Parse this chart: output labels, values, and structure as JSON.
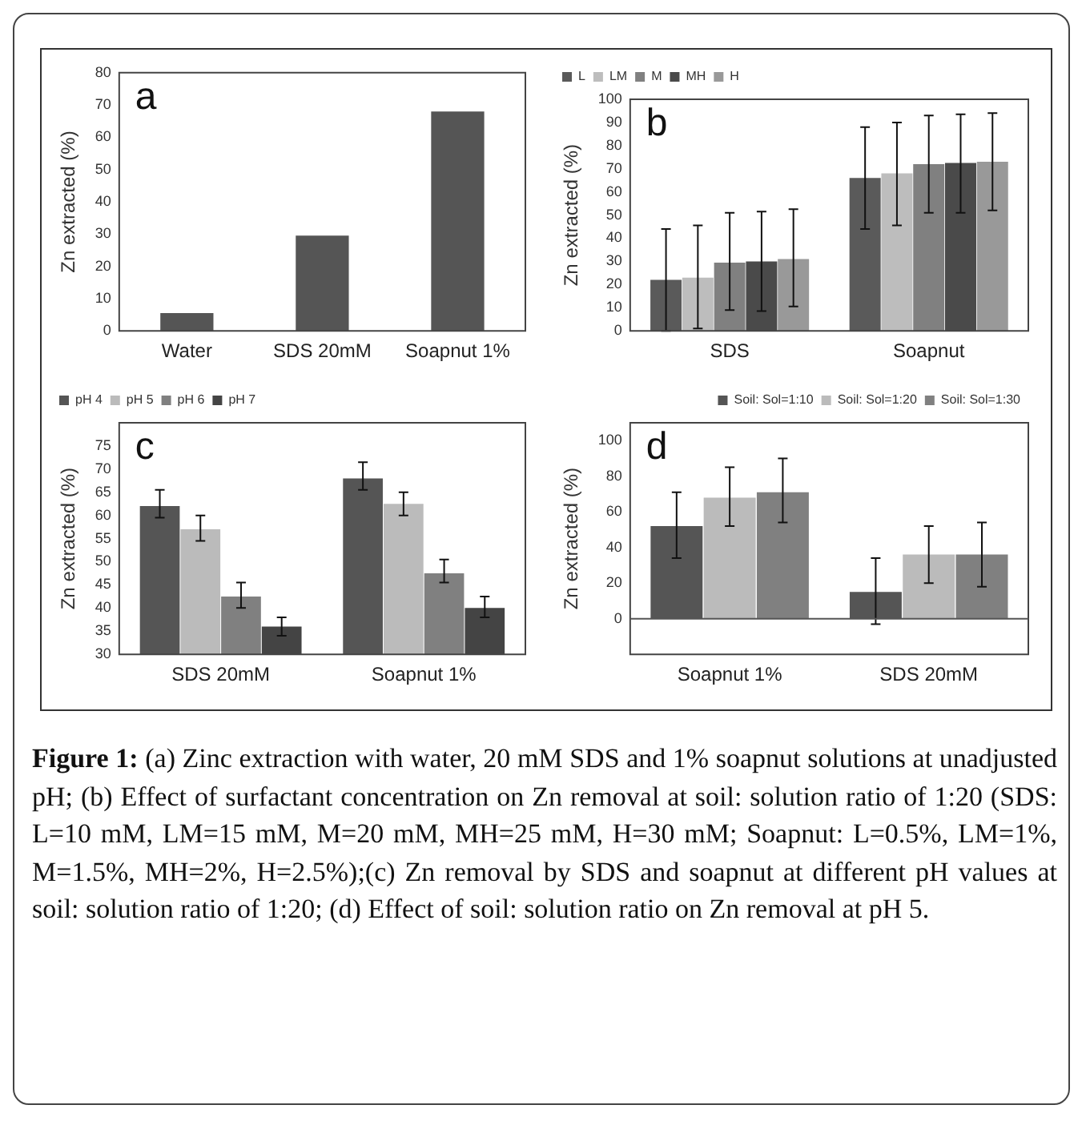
{
  "chart_data": [
    {
      "type": "bar",
      "title": "a",
      "ylabel": "Zn extracted (%)",
      "categories": [
        "Water",
        "SDS 20mM",
        "Soapnut 1%"
      ],
      "values": [
        5.5,
        29.5,
        68
      ],
      "color": "#555555",
      "ylim": [
        0,
        80
      ],
      "yticks": [
        0,
        10,
        20,
        30,
        40,
        50,
        60,
        70,
        80
      ],
      "grid": false,
      "legend": false
    },
    {
      "type": "bar",
      "title": "b",
      "ylabel": "Zn extracted (%)",
      "categories": [
        "SDS",
        "Soapnut"
      ],
      "ylim": [
        0,
        100
      ],
      "yticks": [
        0,
        10,
        20,
        30,
        40,
        50,
        60,
        70,
        80,
        90,
        100
      ],
      "grid": false,
      "legend": "top left",
      "series": [
        {
          "name": "L",
          "color": "#5a5a5a",
          "values": [
            22,
            66
          ],
          "errors": [
            [
              0,
              44
            ],
            [
              44,
              88
            ]
          ]
        },
        {
          "name": "LM",
          "color": "#bdbdbd",
          "values": [
            23,
            68
          ],
          "errors": [
            [
              1,
              45.5
            ],
            [
              45.5,
              90
            ]
          ]
        },
        {
          "name": "M",
          "color": "#808080",
          "values": [
            29.5,
            72
          ],
          "errors": [
            [
              9,
              51
            ],
            [
              51,
              93
            ]
          ]
        },
        {
          "name": "MH",
          "color": "#4a4a4a",
          "values": [
            30,
            72.5
          ],
          "errors": [
            [
              8.5,
              51.5
            ],
            [
              51,
              93.5
            ]
          ]
        },
        {
          "name": "H",
          "color": "#999999",
          "values": [
            31,
            73
          ],
          "errors": [
            [
              10.5,
              52.5
            ],
            [
              52,
              94
            ]
          ]
        }
      ]
    },
    {
      "type": "bar",
      "title": "c",
      "ylabel": "Zn extracted (%)",
      "categories": [
        "SDS 20mM",
        "Soapnut 1%"
      ],
      "ylim": [
        30,
        80
      ],
      "yticks": [
        30,
        35,
        40,
        45,
        50,
        55,
        60,
        65,
        70,
        75
      ],
      "grid": false,
      "legend": "top left",
      "series": [
        {
          "name": "pH 4",
          "color": "#555555",
          "values": [
            62,
            68
          ],
          "errors": [
            [
              59.5,
              65.5
            ],
            [
              65.5,
              71.5
            ]
          ]
        },
        {
          "name": "pH 5",
          "color": "#bbbbbb",
          "values": [
            57,
            62.5
          ],
          "errors": [
            [
              54.5,
              60
            ],
            [
              60,
              65
            ]
          ]
        },
        {
          "name": "pH 6",
          "color": "#808080",
          "values": [
            42.5,
            47.5
          ],
          "errors": [
            [
              40,
              45.5
            ],
            [
              45.5,
              50.5
            ]
          ]
        },
        {
          "name": "pH 7",
          "color": "#444444",
          "values": [
            36,
            40
          ],
          "errors": [
            [
              34,
              38
            ],
            [
              38,
              42.5
            ]
          ]
        }
      ]
    },
    {
      "type": "bar",
      "title": "d",
      "ylabel": "Zn extracted (%)",
      "categories": [
        "Soapnut 1%",
        "SDS 20mM"
      ],
      "ylim": [
        -20,
        110
      ],
      "yticks": [
        0,
        20,
        40,
        60,
        80,
        100
      ],
      "grid": false,
      "ref_lines": [
        {
          "axis": "y",
          "value": 0,
          "color": "#555555"
        }
      ],
      "legend": "top right",
      "series": [
        {
          "name": "Soil: Sol=1:10",
          "color": "#555555",
          "values": [
            52,
            15
          ],
          "errors": [
            [
              34,
              71
            ],
            [
              -3,
              34
            ]
          ]
        },
        {
          "name": "Soil: Sol=1:20",
          "color": "#bbbbbb",
          "values": [
            68,
            36
          ],
          "errors": [
            [
              52,
              85
            ],
            [
              20,
              52
            ]
          ]
        },
        {
          "name": "Soil: Sol=1:30",
          "color": "#808080",
          "values": [
            71,
            36
          ],
          "errors": [
            [
              54,
              90
            ],
            [
              18,
              54
            ]
          ]
        }
      ],
      "annotations": [
        "Figure 1:",
        "(a) Zinc extraction with water, 20 mM SDS and 1% soapnut solutions at unadjusted pH; (b) Effect of surfactant concentration on Zn removal at soil: solution ratio of 1:20 (SDS: L=10 mM, LM=15 mM, M=20 mM, MH=25 mM, H=30 mM; Soapnut: L=0.5%, LM=1%, M=1.5%, MH=2%, H=2.5%);(c) Zn removal by SDS and soapnut at different pH values at soil: solution ratio of 1:20; (d) Effect of soil: solution ratio on Zn removal at pH 5."
      ]
    }
  ]
}
